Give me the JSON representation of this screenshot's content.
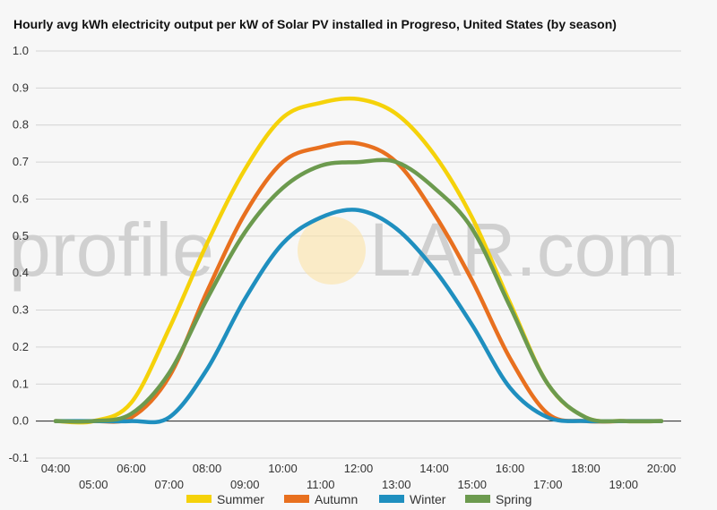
{
  "title": "Hourly avg kWh electricity output per kW of Solar PV installed in Progreso, United States (by season)",
  "watermark": {
    "left": "profile",
    "right": "LAR.com"
  },
  "colors": {
    "Summer": "#f5d20a",
    "Autumn": "#e8701f",
    "Winter": "#1f8fbf",
    "Spring": "#6c9a4e"
  },
  "chart_data": {
    "type": "line",
    "title": "Hourly avg kWh electricity output per kW of Solar PV installed in Progreso, United States (by season)",
    "ylim": [
      -0.1,
      1.0
    ],
    "yticks": [
      "-0.1",
      "0.0",
      "0.1",
      "0.2",
      "0.3",
      "0.4",
      "0.5",
      "0.6",
      "0.7",
      "0.8",
      "0.9",
      "1.0"
    ],
    "categories": [
      "04:00",
      "05:00",
      "06:00",
      "07:00",
      "08:00",
      "09:00",
      "10:00",
      "11:00",
      "12:00",
      "13:00",
      "14:00",
      "15:00",
      "16:00",
      "17:00",
      "18:00",
      "19:00",
      "20:00"
    ],
    "grid": true,
    "legend": "bottom",
    "series": [
      {
        "name": "Summer",
        "values": [
          0.0,
          0.0,
          0.05,
          0.25,
          0.48,
          0.68,
          0.82,
          0.86,
          0.87,
          0.83,
          0.72,
          0.55,
          0.32,
          0.1,
          0.01,
          0.0,
          0.0
        ]
      },
      {
        "name": "Autumn",
        "values": [
          0.0,
          0.0,
          0.01,
          0.12,
          0.35,
          0.56,
          0.7,
          0.74,
          0.75,
          0.7,
          0.56,
          0.38,
          0.17,
          0.02,
          0.0,
          0.0,
          0.0
        ]
      },
      {
        "name": "Winter",
        "values": [
          0.0,
          0.0,
          0.0,
          0.01,
          0.14,
          0.33,
          0.48,
          0.55,
          0.57,
          0.52,
          0.41,
          0.26,
          0.09,
          0.01,
          0.0,
          0.0,
          0.0
        ]
      },
      {
        "name": "Spring",
        "values": [
          0.0,
          0.0,
          0.02,
          0.13,
          0.33,
          0.51,
          0.63,
          0.69,
          0.7,
          0.7,
          0.63,
          0.52,
          0.31,
          0.1,
          0.01,
          0.0,
          0.0
        ]
      }
    ]
  }
}
